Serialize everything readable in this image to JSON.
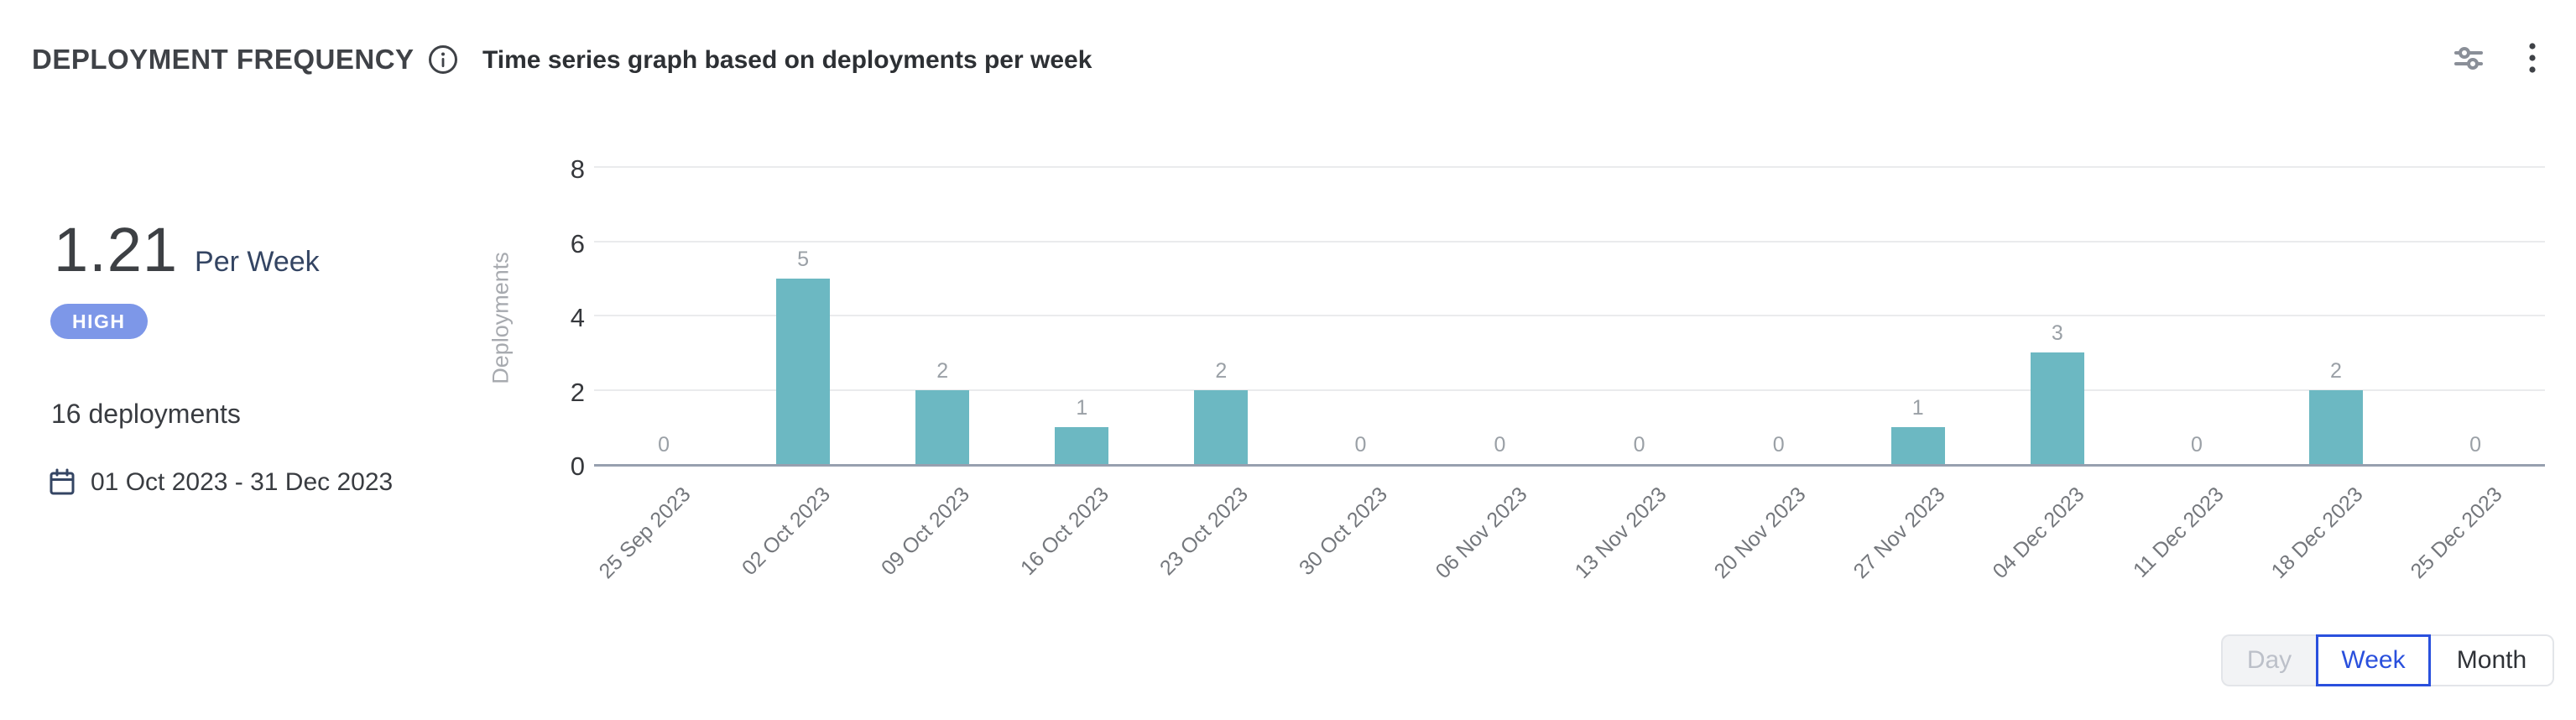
{
  "header": {
    "title": "DEPLOYMENT FREQUENCY",
    "subtitle": "Time series graph based on deployments per week"
  },
  "summary": {
    "rate_value": "1.21",
    "rate_unit": "Per Week",
    "level_badge": "HIGH",
    "total_deployments": "16 deployments",
    "date_range": "01 Oct 2023 - 31 Dec 2023"
  },
  "icons": {
    "info": "info-icon",
    "settings": "sliders-icon",
    "menu": "kebab-menu-icon",
    "calendar": "calendar-icon"
  },
  "chart_data": {
    "type": "bar",
    "title": "Time series graph based on deployments per week",
    "xlabel": "",
    "ylabel": "Deployments",
    "categories": [
      "25 Sep 2023",
      "02 Oct 2023",
      "09 Oct 2023",
      "16 Oct 2023",
      "23 Oct 2023",
      "30 Oct 2023",
      "06 Nov 2023",
      "13 Nov 2023",
      "20 Nov 2023",
      "27 Nov 2023",
      "04 Dec 2023",
      "11 Dec 2023",
      "18 Dec 2023",
      "25 Dec 2023"
    ],
    "values": [
      0,
      5,
      2,
      1,
      2,
      0,
      0,
      0,
      0,
      1,
      3,
      0,
      2,
      0
    ],
    "ylim": [
      0,
      8
    ],
    "yticks": [
      0,
      2,
      4,
      6,
      8
    ],
    "grid": true,
    "legend": false,
    "data_labels": true,
    "x_label_rotation": -45,
    "bar_color": "#6cb8c2"
  },
  "granularity_toggle": {
    "options": [
      {
        "label": "Day",
        "state": "disabled"
      },
      {
        "label": "Week",
        "state": "selected"
      },
      {
        "label": "Month",
        "state": "default"
      }
    ]
  },
  "colors": {
    "bar": "#6cb8c2",
    "badge_high": "#7d97e8",
    "toggle_selected": "#2a50dd",
    "axis_line": "#97a0af",
    "gridline": "#eaebed"
  }
}
